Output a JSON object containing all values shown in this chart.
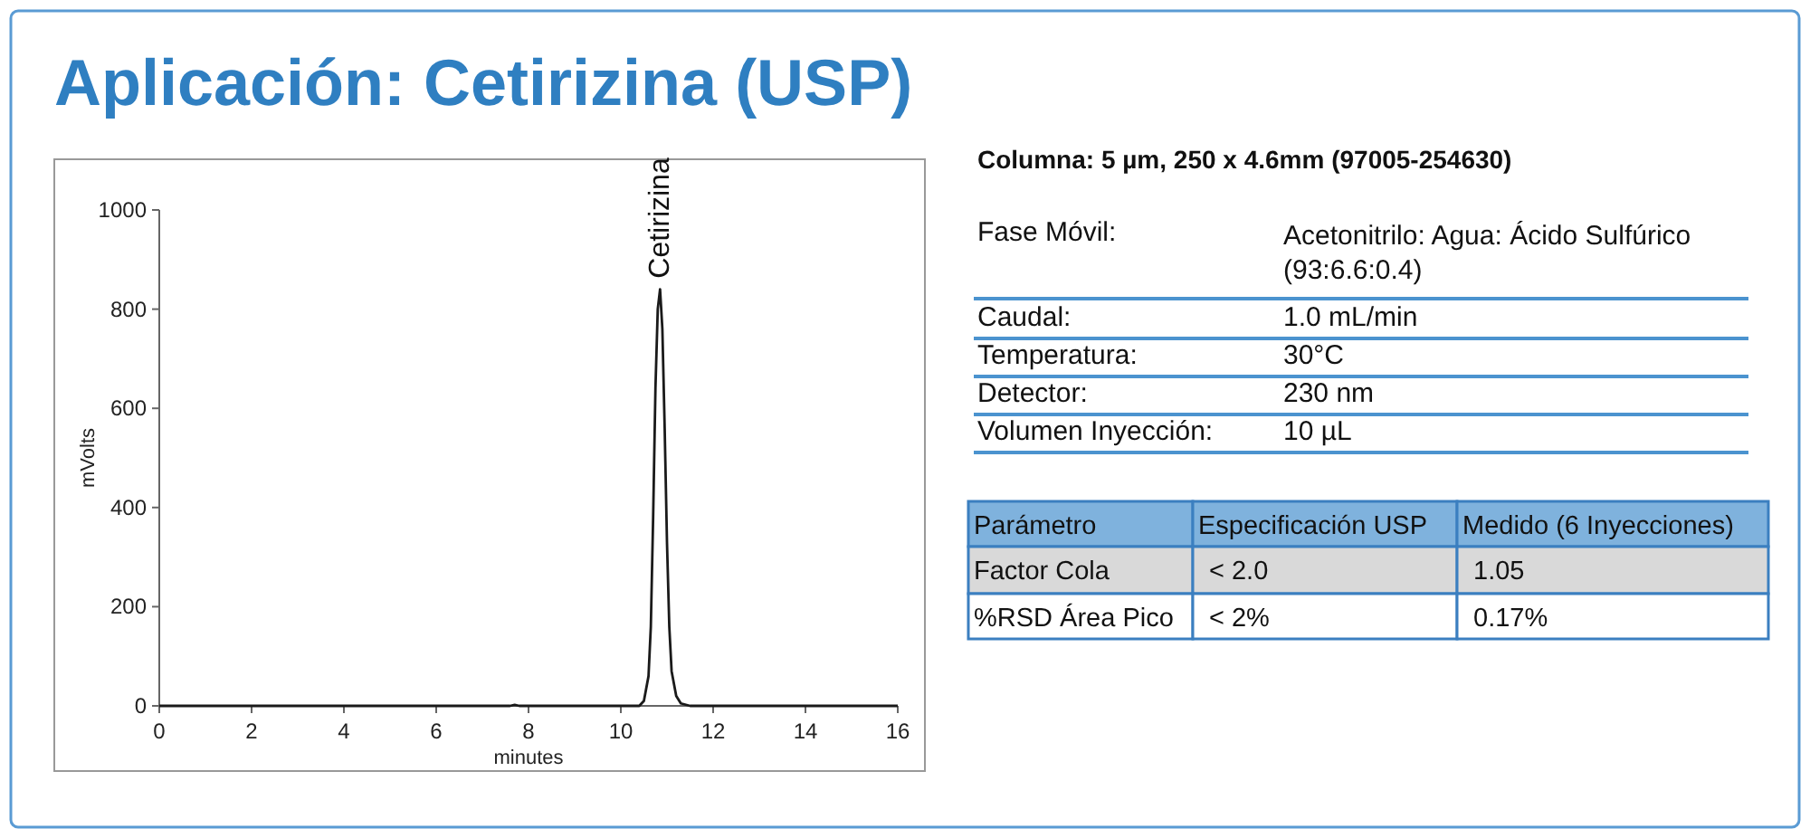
{
  "chart_data": [
    {
      "type": "line",
      "title": "Aplicación: Cetirizina (USP)",
      "xlabel": "minutes",
      "ylabel": "mVolts",
      "xlim": [
        0,
        16
      ],
      "xticks": [
        0,
        2,
        4,
        6,
        8,
        10,
        12,
        14,
        16
      ],
      "ylim": [
        0,
        1000
      ],
      "yticks": [
        0,
        200,
        400,
        600,
        800,
        1000
      ],
      "marker": "none",
      "line_style": "solid",
      "series": [
        {
          "color": "#1a1a1a",
          "x": [
            0,
            7.6,
            7.7,
            7.8,
            10.4,
            10.5,
            10.6,
            10.65,
            10.7,
            10.75,
            10.8,
            10.85,
            10.9,
            10.95,
            11.0,
            11.05,
            11.1,
            11.2,
            11.3,
            11.5,
            16
          ],
          "values": [
            0,
            0,
            2,
            0,
            0,
            10,
            60,
            160,
            380,
            640,
            800,
            840,
            760,
            560,
            330,
            160,
            70,
            20,
            5,
            0,
            0
          ]
        }
      ],
      "annotations": [
        {
          "text": "Cetirizina",
          "x": 10.85,
          "y": 840
        }
      ]
    },
    {
      "type": "other",
      "title": "Columna: 5 µm, 250 x 4.6mm (97005-254630)",
      "annotations": [
        "Fase Móvil:",
        "Acetonitrilo: Agua: Ácido Sulfúrico\n(93:6.6:0.4)",
        "Caudal:",
        "1.0 mL/min",
        "Temperatura:",
        "30°C",
        "Detector:",
        "230 nm",
        "Volumen Inyección:",
        "10 µL",
        "Parámetro",
        "Especificación USP",
        "Medido (6 Inyecciones)",
        "Factor Cola",
        "< 2.0",
        "1.05",
        "%RSD Área Pico",
        "< 2%",
        "0.17%"
      ]
    }
  ]
}
